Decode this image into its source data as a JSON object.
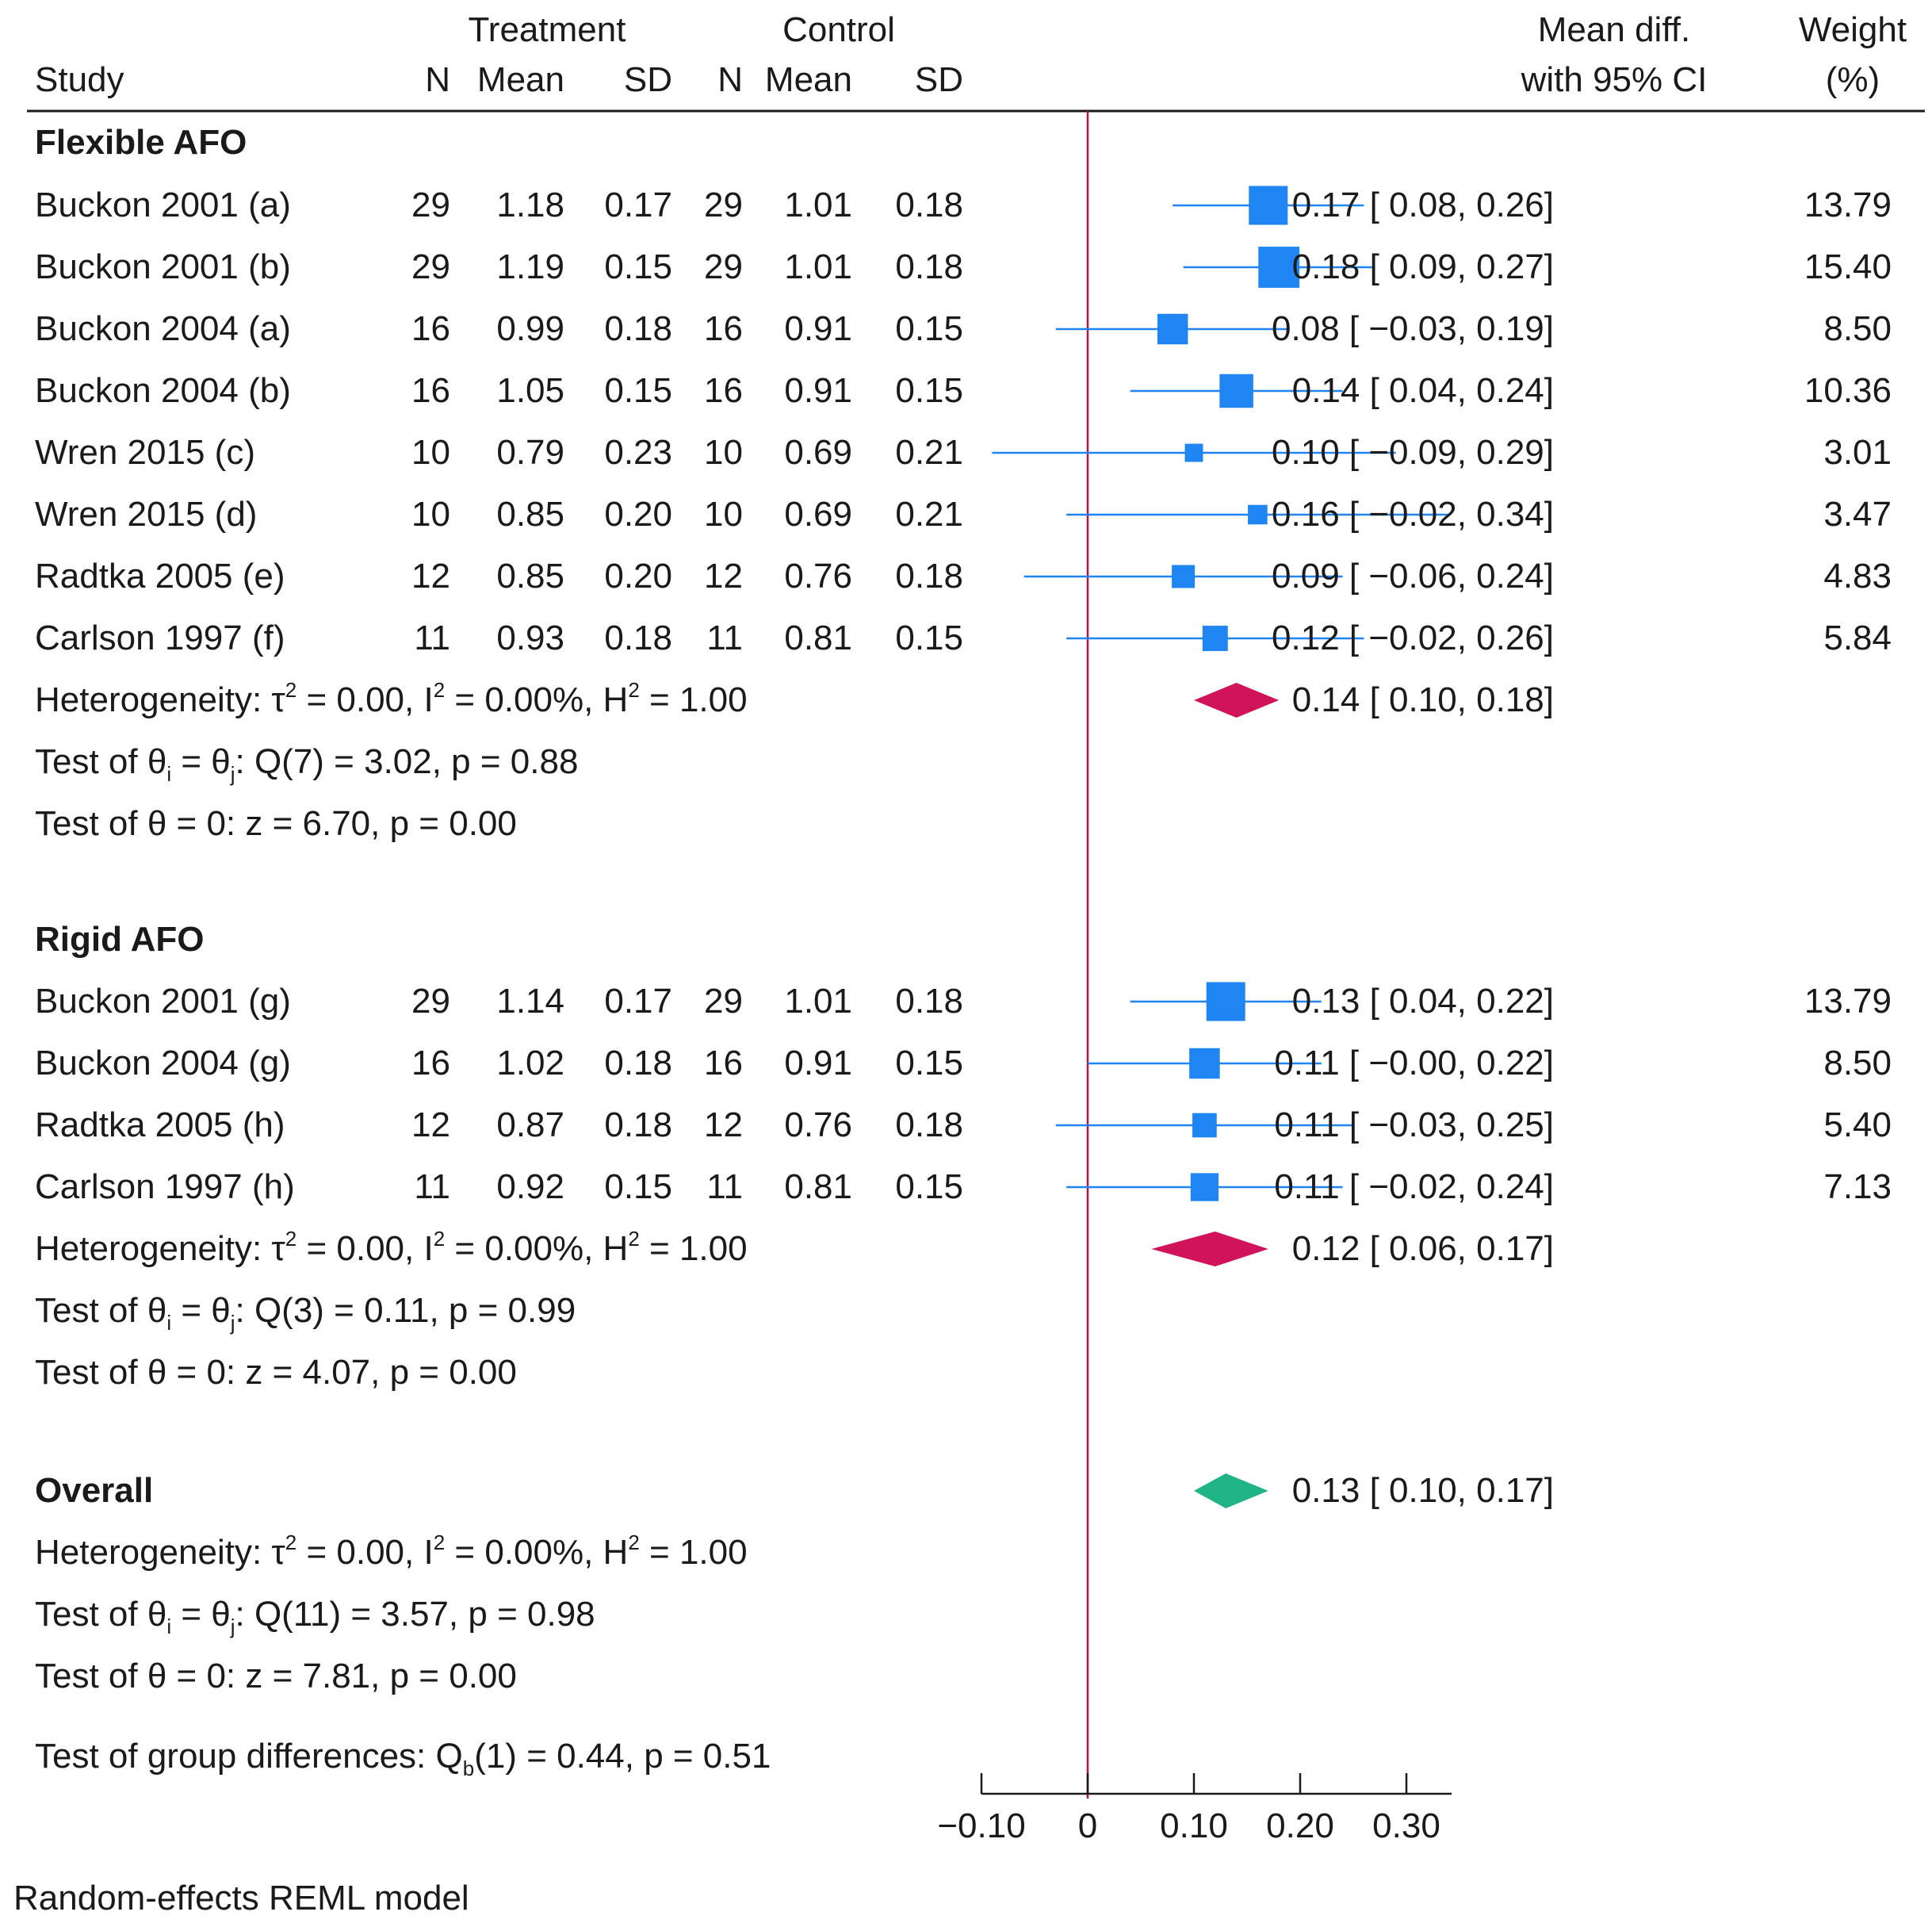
{
  "chart_data": {
    "type": "forest",
    "header": {
      "study": "Study",
      "treatment": "Treatment",
      "control": "Control",
      "n": "N",
      "mean": "Mean",
      "sd": "SD",
      "effect_line1": "Mean diff.",
      "effect_line2": "with 95% CI",
      "weight_line1": "Weight",
      "weight_line2": "(%)"
    },
    "xaxis": {
      "ticks": [
        -0.1,
        0,
        0.1,
        0.2,
        0.3
      ],
      "tick_labels": [
        "−0.10",
        "0",
        "0.10",
        "0.20",
        "0.30"
      ],
      "range": [
        -0.1,
        0.34
      ],
      "null_line": 0
    },
    "colors": {
      "study": "#1f85f2",
      "subgroup_diamond": "#d1145a",
      "overall_diamond": "#1fb385",
      "null_line": "#b3163c",
      "text": "#1a1a1a"
    },
    "groups": [
      {
        "name": "Flexible AFO",
        "studies": [
          {
            "study": "Buckon 2001 (a)",
            "t_n": "29",
            "t_mean": "1.18",
            "t_sd": "0.17",
            "c_n": "29",
            "c_mean": "1.01",
            "c_sd": "0.18",
            "effect": 0.17,
            "lo": 0.08,
            "hi": 0.26,
            "ci_text": "0.17 [  0.08,  0.26]",
            "weight": "13.79"
          },
          {
            "study": "Buckon 2001 (b)",
            "t_n": "29",
            "t_mean": "1.19",
            "t_sd": "0.15",
            "c_n": "29",
            "c_mean": "1.01",
            "c_sd": "0.18",
            "effect": 0.18,
            "lo": 0.09,
            "hi": 0.27,
            "ci_text": "0.18 [  0.09,  0.27]",
            "weight": "15.40"
          },
          {
            "study": "Buckon 2004 (a)",
            "t_n": "16",
            "t_mean": "0.99",
            "t_sd": "0.18",
            "c_n": "16",
            "c_mean": "0.91",
            "c_sd": "0.15",
            "effect": 0.08,
            "lo": -0.03,
            "hi": 0.19,
            "ci_text": "0.08 [ −0.03,  0.19]",
            "weight": "8.50"
          },
          {
            "study": "Buckon 2004 (b)",
            "t_n": "16",
            "t_mean": "1.05",
            "t_sd": "0.15",
            "c_n": "16",
            "c_mean": "0.91",
            "c_sd": "0.15",
            "effect": 0.14,
            "lo": 0.04,
            "hi": 0.24,
            "ci_text": "0.14 [  0.04,  0.24]",
            "weight": "10.36"
          },
          {
            "study": "Wren 2015 (c)",
            "t_n": "10",
            "t_mean": "0.79",
            "t_sd": "0.23",
            "c_n": "10",
            "c_mean": "0.69",
            "c_sd": "0.21",
            "effect": 0.1,
            "lo": -0.09,
            "hi": 0.29,
            "ci_text": "0.10 [ −0.09,  0.29]",
            "weight": "3.01"
          },
          {
            "study": "Wren 2015 (d)",
            "t_n": "10",
            "t_mean": "0.85",
            "t_sd": "0.20",
            "c_n": "10",
            "c_mean": "0.69",
            "c_sd": "0.21",
            "effect": 0.16,
            "lo": -0.02,
            "hi": 0.34,
            "ci_text": "0.16 [ −0.02,  0.34]",
            "weight": "3.47"
          },
          {
            "study": "Radtka 2005 (e)",
            "t_n": "12",
            "t_mean": "0.85",
            "t_sd": "0.20",
            "c_n": "12",
            "c_mean": "0.76",
            "c_sd": "0.18",
            "effect": 0.09,
            "lo": -0.06,
            "hi": 0.24,
            "ci_text": "0.09 [ −0.06,  0.24]",
            "weight": "4.83"
          },
          {
            "study": "Carlson 1997 (f)",
            "t_n": "11",
            "t_mean": "0.93",
            "t_sd": "0.18",
            "c_n": "11",
            "c_mean": "0.81",
            "c_sd": "0.15",
            "effect": 0.12,
            "lo": -0.02,
            "hi": 0.26,
            "ci_text": "0.12 [ −0.02,  0.26]",
            "weight": "5.84"
          }
        ],
        "pooled": {
          "effect": 0.14,
          "lo": 0.1,
          "hi": 0.18,
          "ci_text": "0.14 [  0.10,  0.18]"
        },
        "stats": {
          "heterogeneity": {
            "prefix": "Heterogeneity: τ",
            "mid1": " = 0.00, I",
            "mid2": " = 0.00%, H",
            "suffix": " = 1.00"
          },
          "q_test": {
            "prefix": "Test of θ",
            "mid1": " = θ",
            "suffix": ": Q(7) = 3.02, p = 0.88"
          },
          "z_test": "Test of θ = 0: z = 6.70, p = 0.00"
        }
      },
      {
        "name": "Rigid AFO",
        "studies": [
          {
            "study": "Buckon 2001 (g)",
            "t_n": "29",
            "t_mean": "1.14",
            "t_sd": "0.17",
            "c_n": "29",
            "c_mean": "1.01",
            "c_sd": "0.18",
            "effect": 0.13,
            "lo": 0.04,
            "hi": 0.22,
            "ci_text": "0.13 [  0.04,  0.22]",
            "weight": "13.79"
          },
          {
            "study": "Buckon 2004 (g)",
            "t_n": "16",
            "t_mean": "1.02",
            "t_sd": "0.18",
            "c_n": "16",
            "c_mean": "0.91",
            "c_sd": "0.15",
            "effect": 0.11,
            "lo": -0.0,
            "hi": 0.22,
            "ci_text": "0.11 [ −0.00,  0.22]",
            "weight": "8.50"
          },
          {
            "study": "Radtka 2005 (h)",
            "t_n": "12",
            "t_mean": "0.87",
            "t_sd": "0.18",
            "c_n": "12",
            "c_mean": "0.76",
            "c_sd": "0.18",
            "effect": 0.11,
            "lo": -0.03,
            "hi": 0.25,
            "ci_text": "0.11 [ −0.03,  0.25]",
            "weight": "5.40"
          },
          {
            "study": "Carlson 1997 (h)",
            "t_n": "11",
            "t_mean": "0.92",
            "t_sd": "0.15",
            "c_n": "11",
            "c_mean": "0.81",
            "c_sd": "0.15",
            "effect": 0.11,
            "lo": -0.02,
            "hi": 0.24,
            "ci_text": "0.11 [ −0.02,  0.24]",
            "weight": "7.13"
          }
        ],
        "pooled": {
          "effect": 0.12,
          "lo": 0.06,
          "hi": 0.17,
          "ci_text": "0.12 [  0.06,  0.17]"
        },
        "stats": {
          "heterogeneity": {
            "prefix": "Heterogeneity: τ",
            "mid1": " = 0.00, I",
            "mid2": " = 0.00%, H",
            "suffix": " = 1.00"
          },
          "q_test": {
            "prefix": "Test of θ",
            "mid1": " = θ",
            "suffix": ": Q(3) = 0.11, p = 0.99"
          },
          "z_test": "Test of θ = 0: z = 4.07, p = 0.00"
        }
      }
    ],
    "overall": {
      "label": "Overall",
      "effect": 0.13,
      "lo": 0.1,
      "hi": 0.17,
      "ci_text": "0.13 [  0.10,  0.17]",
      "stats": {
        "heterogeneity": {
          "prefix": "Heterogeneity: τ",
          "mid1": " = 0.00, I",
          "mid2": " = 0.00%, H",
          "suffix": " = 1.00"
        },
        "q_test": {
          "prefix": "Test of θ",
          "mid1": " = θ",
          "suffix": ": Q(11) = 3.57, p = 0.98"
        },
        "z_test": "Test of θ = 0: z = 7.81, p = 0.00"
      }
    },
    "group_test": {
      "prefix": "Test of group differences: Q",
      "suffix": "(1) = 0.44, p = 0.51"
    },
    "sub": {
      "i": "i",
      "j": "j",
      "b": "b",
      "two": "2"
    },
    "footnote": "Random-effects REML model"
  }
}
